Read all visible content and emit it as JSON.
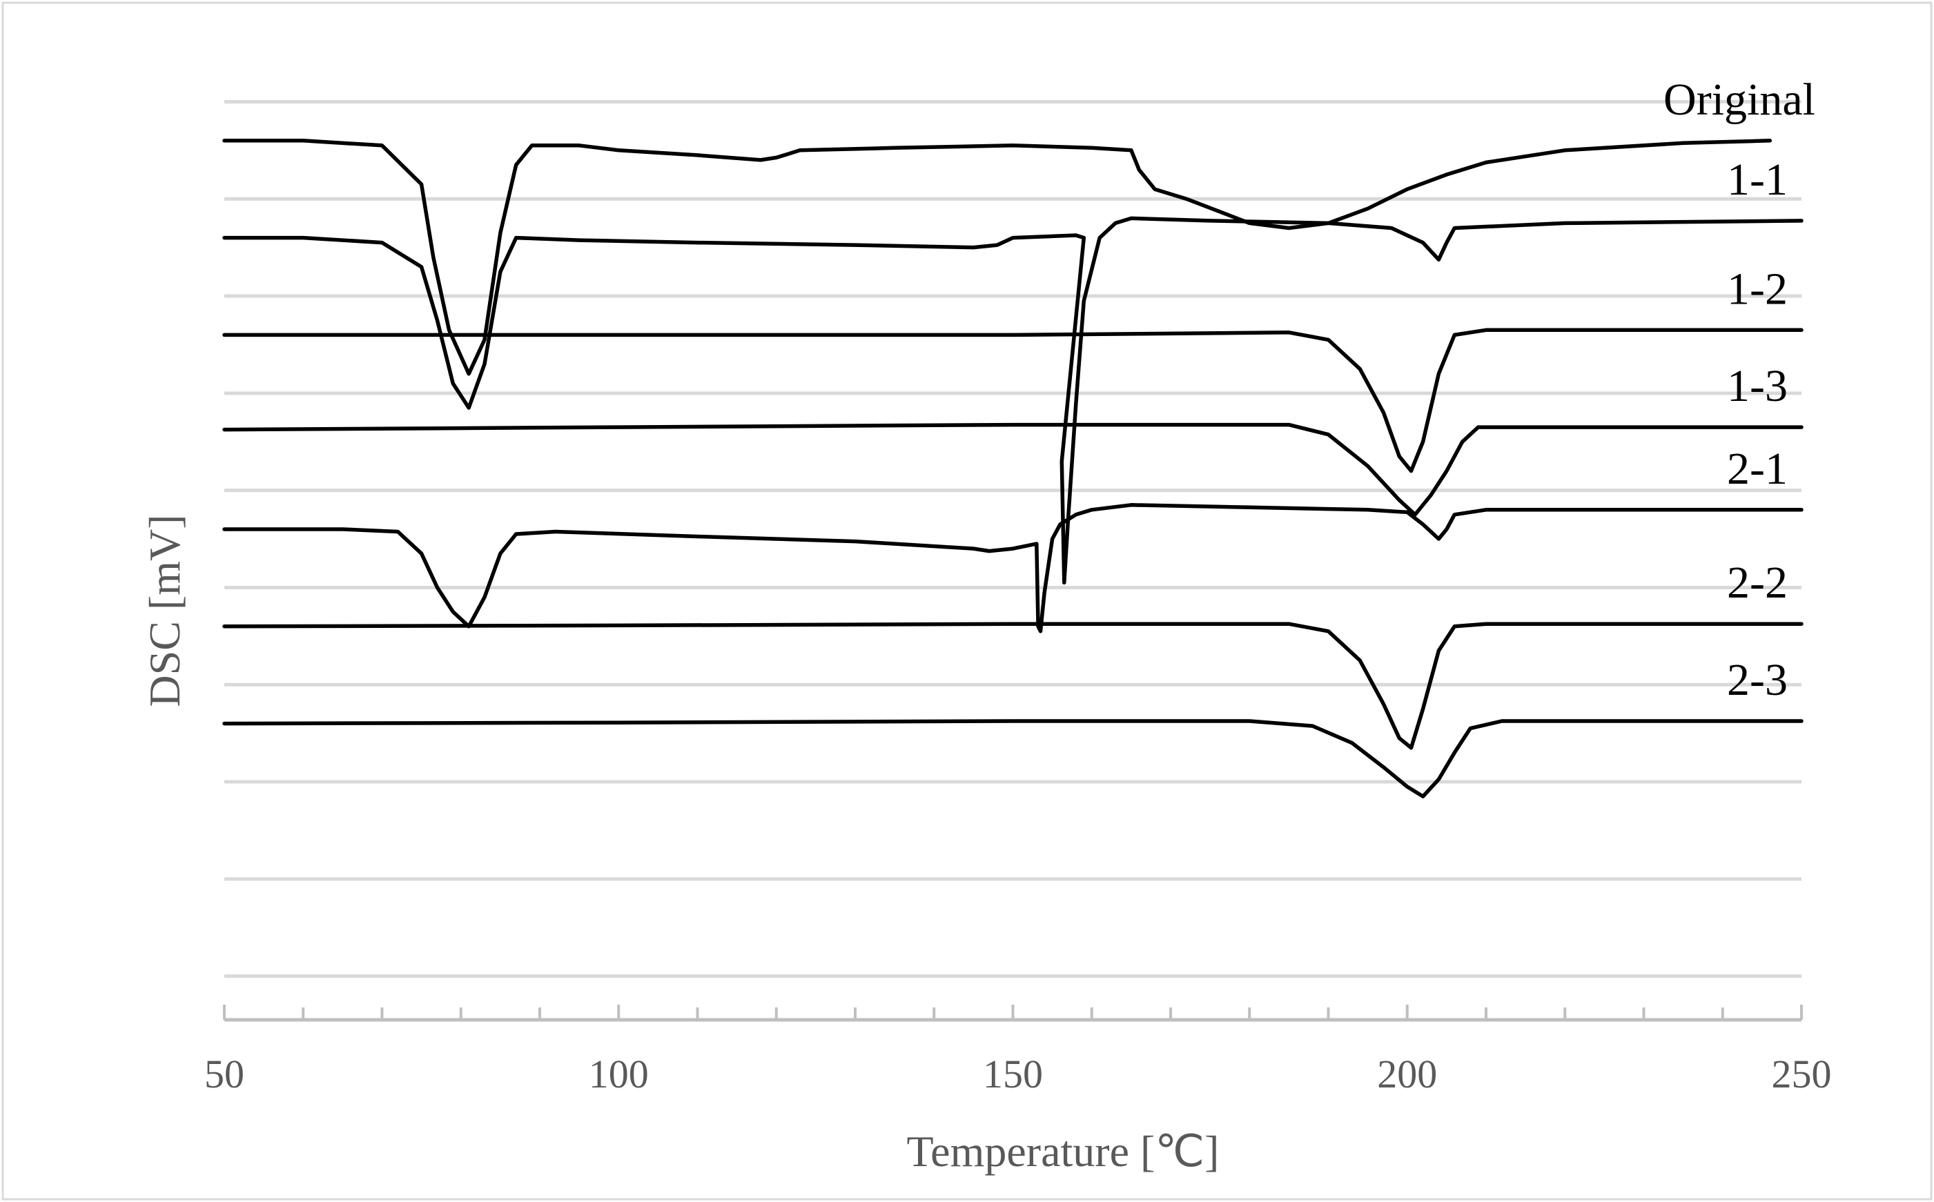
{
  "chart_data": {
    "type": "line",
    "title": "",
    "xlabel": "Temperature [℃]",
    "ylabel": "DSC [mV]",
    "xlim": [
      50,
      250
    ],
    "x_ticks": [
      50,
      100,
      150,
      200,
      250
    ],
    "x_minor_step": 10,
    "y_units_note": "stacked curves, arbitrary offset units",
    "ylim": [
      0,
      20
    ],
    "grid": true,
    "grid_levels": [
      0.9,
      2.9,
      4.9,
      6.9,
      8.9,
      10.9,
      12.9,
      14.9,
      16.9,
      18.9
    ],
    "legend": "labels at right end of each curve",
    "line_color": "#000000",
    "grid_color": "#d9d9d9",
    "series": [
      {
        "name": "Original",
        "points": [
          [
            50,
            18.1
          ],
          [
            60,
            18.1
          ],
          [
            70,
            18.0
          ],
          [
            75,
            17.2
          ],
          [
            76.5,
            15.7
          ],
          [
            78.5,
            14.2
          ],
          [
            81,
            13.3
          ],
          [
            83,
            14.0
          ],
          [
            85,
            16.2
          ],
          [
            87,
            17.6
          ],
          [
            89,
            18.0
          ],
          [
            95,
            18.0
          ],
          [
            100,
            17.9
          ],
          [
            110,
            17.8
          ],
          [
            118,
            17.7
          ],
          [
            120,
            17.75
          ],
          [
            123,
            17.9
          ],
          [
            135,
            17.95
          ],
          [
            150,
            18.0
          ],
          [
            160,
            17.95
          ],
          [
            165,
            17.9
          ],
          [
            166,
            17.5
          ],
          [
            168,
            17.1
          ],
          [
            172,
            16.9
          ],
          [
            180,
            16.4
          ],
          [
            185,
            16.3
          ],
          [
            190,
            16.4
          ],
          [
            195,
            16.7
          ],
          [
            200,
            17.1
          ],
          [
            205,
            17.4
          ],
          [
            210,
            17.65
          ],
          [
            220,
            17.9
          ],
          [
            235,
            18.05
          ],
          [
            246,
            18.1
          ]
        ]
      },
      {
        "name": "1-1",
        "points": [
          [
            50,
            16.1
          ],
          [
            60,
            16.1
          ],
          [
            70,
            16.0
          ],
          [
            75,
            15.5
          ],
          [
            77,
            14.4
          ],
          [
            79,
            13.1
          ],
          [
            81,
            12.6
          ],
          [
            83,
            13.5
          ],
          [
            85,
            15.4
          ],
          [
            87,
            16.1
          ],
          [
            95,
            16.05
          ],
          [
            110,
            16.0
          ],
          [
            130,
            15.95
          ],
          [
            145,
            15.9
          ],
          [
            148,
            15.95
          ],
          [
            150,
            16.1
          ],
          [
            158,
            16.15
          ],
          [
            159,
            16.1
          ],
          [
            156.2,
            11.5
          ],
          [
            156.5,
            9.0
          ],
          [
            157,
            10.3
          ],
          [
            158,
            12.7
          ],
          [
            159,
            14.8
          ],
          [
            161,
            16.1
          ],
          [
            163,
            16.4
          ],
          [
            165,
            16.5
          ],
          [
            175,
            16.45
          ],
          [
            190,
            16.4
          ],
          [
            198,
            16.3
          ],
          [
            202,
            16.0
          ],
          [
            204,
            15.65
          ],
          [
            205,
            16.0
          ],
          [
            206,
            16.3
          ],
          [
            220,
            16.4
          ],
          [
            250,
            16.45
          ]
        ]
      },
      {
        "name": "1-2",
        "points": [
          [
            50,
            14.1
          ],
          [
            100,
            14.1
          ],
          [
            150,
            14.1
          ],
          [
            185,
            14.15
          ],
          [
            190,
            14.0
          ],
          [
            194,
            13.4
          ],
          [
            197,
            12.5
          ],
          [
            199,
            11.6
          ],
          [
            200.5,
            11.3
          ],
          [
            202,
            11.9
          ],
          [
            204,
            13.3
          ],
          [
            206,
            14.1
          ],
          [
            210,
            14.2
          ],
          [
            250,
            14.2
          ]
        ]
      },
      {
        "name": "1-3",
        "points": [
          [
            50,
            12.15
          ],
          [
            100,
            12.2
          ],
          [
            150,
            12.25
          ],
          [
            185,
            12.25
          ],
          [
            190,
            12.05
          ],
          [
            195,
            11.4
          ],
          [
            199,
            10.7
          ],
          [
            201,
            10.4
          ],
          [
            203,
            10.8
          ],
          [
            205,
            11.3
          ],
          [
            207,
            11.9
          ],
          [
            209,
            12.2
          ],
          [
            215,
            12.2
          ],
          [
            250,
            12.2
          ]
        ]
      },
      {
        "name": "2-1",
        "points": [
          [
            50,
            10.1
          ],
          [
            65,
            10.1
          ],
          [
            72,
            10.05
          ],
          [
            75,
            9.6
          ],
          [
            77,
            8.9
          ],
          [
            79,
            8.4
          ],
          [
            81,
            8.1
          ],
          [
            83,
            8.7
          ],
          [
            85,
            9.6
          ],
          [
            87,
            10.0
          ],
          [
            92,
            10.05
          ],
          [
            110,
            9.95
          ],
          [
            130,
            9.85
          ],
          [
            145,
            9.7
          ],
          [
            147,
            9.65
          ],
          [
            150,
            9.7
          ],
          [
            153,
            9.8
          ],
          [
            153.2,
            8.1
          ],
          [
            153.5,
            8.0
          ],
          [
            154,
            8.8
          ],
          [
            155,
            9.9
          ],
          [
            156,
            10.2
          ],
          [
            158,
            10.4
          ],
          [
            160,
            10.5
          ],
          [
            165,
            10.6
          ],
          [
            180,
            10.55
          ],
          [
            195,
            10.5
          ],
          [
            200,
            10.45
          ],
          [
            202,
            10.2
          ],
          [
            204,
            9.9
          ],
          [
            205,
            10.1
          ],
          [
            206,
            10.4
          ],
          [
            210,
            10.5
          ],
          [
            250,
            10.5
          ]
        ]
      },
      {
        "name": "2-2",
        "points": [
          [
            50,
            8.1
          ],
          [
            100,
            8.12
          ],
          [
            150,
            8.15
          ],
          [
            185,
            8.15
          ],
          [
            190,
            8.0
          ],
          [
            194,
            7.4
          ],
          [
            197,
            6.5
          ],
          [
            199,
            5.8
          ],
          [
            200.5,
            5.6
          ],
          [
            202,
            6.4
          ],
          [
            204,
            7.6
          ],
          [
            206,
            8.1
          ],
          [
            210,
            8.15
          ],
          [
            250,
            8.15
          ]
        ]
      },
      {
        "name": "2-3",
        "points": [
          [
            50,
            6.1
          ],
          [
            100,
            6.12
          ],
          [
            150,
            6.15
          ],
          [
            180,
            6.15
          ],
          [
            188,
            6.05
          ],
          [
            193,
            5.7
          ],
          [
            197,
            5.2
          ],
          [
            200,
            4.8
          ],
          [
            202,
            4.6
          ],
          [
            204,
            4.95
          ],
          [
            206,
            5.5
          ],
          [
            208,
            6.0
          ],
          [
            212,
            6.15
          ],
          [
            250,
            6.15
          ]
        ]
      }
    ]
  }
}
